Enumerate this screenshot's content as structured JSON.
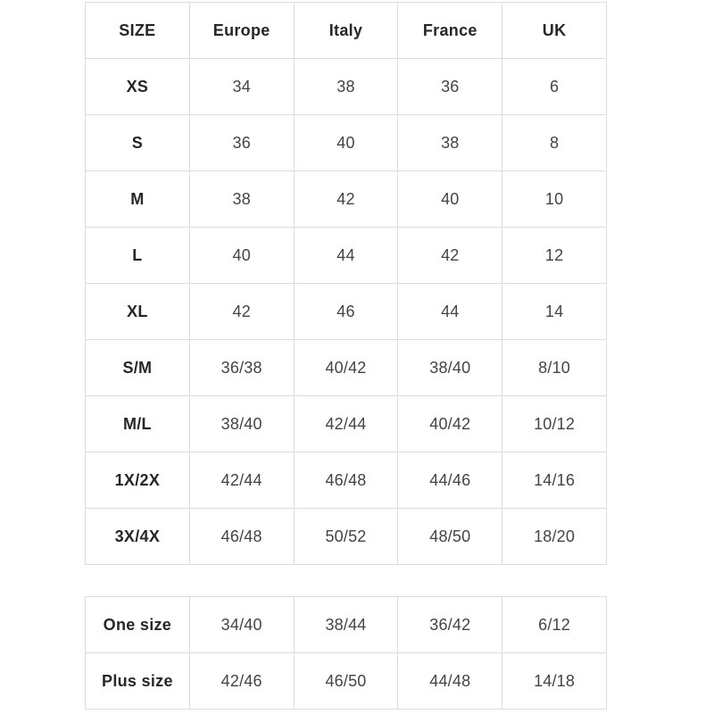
{
  "page": {
    "background": "#ffffff"
  },
  "colors": {
    "border": "#dcdcdc",
    "header_text": "#26262e",
    "value_text": "#43434d"
  },
  "main_table": {
    "headers": [
      "SIZE",
      "Europe",
      "Italy",
      "France",
      "UK"
    ],
    "rows": [
      {
        "size": "XS",
        "values": [
          "34",
          "38",
          "36",
          "6"
        ]
      },
      {
        "size": "S",
        "values": [
          "36",
          "40",
          "38",
          "8"
        ]
      },
      {
        "size": "M",
        "values": [
          "38",
          "42",
          "40",
          "10"
        ]
      },
      {
        "size": "L",
        "values": [
          "40",
          "44",
          "42",
          "12"
        ]
      },
      {
        "size": "XL",
        "values": [
          "42",
          "46",
          "44",
          "14"
        ]
      },
      {
        "size": "S/M",
        "values": [
          "36/38",
          "40/42",
          "38/40",
          "8/10"
        ]
      },
      {
        "size": "M/L",
        "values": [
          "38/40",
          "42/44",
          "40/42",
          "10/12"
        ]
      },
      {
        "size": "1X/2X",
        "values": [
          "42/44",
          "46/48",
          "44/46",
          "14/16"
        ]
      },
      {
        "size": "3X/4X",
        "values": [
          "46/48",
          "50/52",
          "48/50",
          "18/20"
        ]
      }
    ]
  },
  "secondary_table": {
    "rows": [
      {
        "size": "One size",
        "values": [
          "34/40",
          "38/44",
          "36/42",
          "6/12"
        ]
      },
      {
        "size": "Plus size",
        "values": [
          "42/46",
          "46/50",
          "44/48",
          "14/18"
        ]
      }
    ]
  }
}
